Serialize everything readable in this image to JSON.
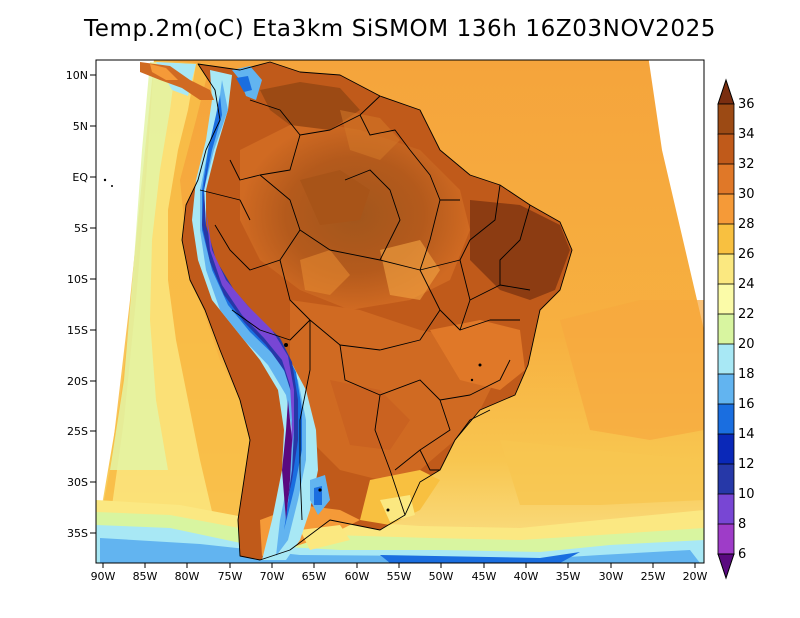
{
  "title": "Temp.2m(oC) Eta3km SiSMOM 136h 16Z03NOV2025",
  "map": {
    "variable": "2 m air temperature",
    "units": "oC",
    "lat_labels": [
      "10N",
      "5N",
      "EQ",
      "5S",
      "10S",
      "15S",
      "20S",
      "25S",
      "30S",
      "35S"
    ],
    "lon_labels": [
      "90W",
      "85W",
      "80W",
      "75W",
      "70W",
      "65W",
      "60W",
      "55W",
      "50W",
      "45W",
      "40W",
      "35W",
      "30W",
      "25W",
      "20W"
    ]
  },
  "colorbar": {
    "labels": [
      "36",
      "34",
      "32",
      "30",
      "28",
      "26",
      "24",
      "22",
      "20",
      "18",
      "16",
      "14",
      "12",
      "10",
      "8",
      "6"
    ],
    "colors": [
      "#7a2e10",
      "#9c4a14",
      "#c05a1a",
      "#e07828",
      "#f59a38",
      "#f8c040",
      "#fbe880",
      "#fbfba8",
      "#d8f5a0",
      "#a8e8f5",
      "#62b4f0",
      "#1a6ee0",
      "#0a28b8",
      "#2638a8",
      "#7846d4",
      "#9e3cc8",
      "#5a0a80"
    ]
  }
}
